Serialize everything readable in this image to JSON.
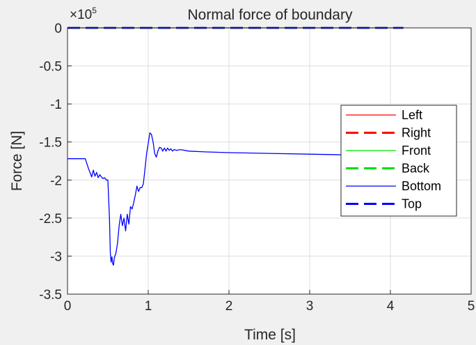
{
  "chart_data": {
    "type": "line",
    "title": "Normal force of boundary",
    "xlabel": "Time [s]",
    "ylabel": "Force [N]",
    "exponent_base": "×10",
    "exponent_power": "5",
    "xlim": [
      0,
      5
    ],
    "ylim": [
      -3.5,
      0
    ],
    "scale_factor": 100000,
    "x_ticks": [
      0,
      1,
      2,
      3,
      4,
      5
    ],
    "x_tick_labels": [
      "0",
      "1",
      "2",
      "3",
      "4",
      "5"
    ],
    "y_ticks": [
      0,
      -0.5,
      -1,
      -1.5,
      -2,
      -2.5,
      -3,
      -3.5
    ],
    "y_tick_labels": [
      "0",
      "-0.5",
      "-1",
      "-1.5",
      "-2",
      "-2.5",
      "-3",
      "-3.5"
    ],
    "grid": true,
    "legend_position": "right",
    "series": [
      {
        "name": "Left",
        "color": "#ff0000",
        "style": "solid",
        "x": [
          0,
          4.16
        ],
        "y": [
          0,
          0
        ]
      },
      {
        "name": "Right",
        "color": "#ff0000",
        "style": "dashed",
        "x": [
          0,
          4.16
        ],
        "y": [
          0,
          0
        ]
      },
      {
        "name": "Front",
        "color": "#00dd00",
        "style": "solid",
        "x": [
          0,
          4.16
        ],
        "y": [
          0,
          0
        ]
      },
      {
        "name": "Back",
        "color": "#00dd00",
        "style": "dashed",
        "x": [
          0,
          4.16
        ],
        "y": [
          0,
          0
        ]
      },
      {
        "name": "Bottom",
        "color": "#0000ff",
        "style": "solid",
        "x": [
          0,
          0.22,
          0.26,
          0.3,
          0.32,
          0.34,
          0.36,
          0.38,
          0.4,
          0.42,
          0.44,
          0.46,
          0.48,
          0.5,
          0.52,
          0.53,
          0.54,
          0.55,
          0.56,
          0.57,
          0.58,
          0.6,
          0.62,
          0.64,
          0.66,
          0.68,
          0.7,
          0.72,
          0.74,
          0.76,
          0.78,
          0.8,
          0.82,
          0.84,
          0.86,
          0.88,
          0.9,
          0.92,
          0.94,
          0.96,
          0.98,
          1.0,
          1.02,
          1.04,
          1.06,
          1.08,
          1.1,
          1.12,
          1.14,
          1.16,
          1.18,
          1.2,
          1.22,
          1.24,
          1.26,
          1.28,
          1.3,
          1.32,
          1.35,
          1.4,
          1.5,
          1.7,
          2.0,
          2.5,
          3.0,
          3.5
        ],
        "y": [
          -1.72,
          -1.72,
          -1.85,
          -1.96,
          -1.87,
          -1.95,
          -1.9,
          -1.97,
          -1.93,
          -1.96,
          -1.98,
          -1.97,
          -2.0,
          -2.0,
          -2.5,
          -2.95,
          -3.08,
          -3.01,
          -3.1,
          -3.12,
          -3.02,
          -2.96,
          -2.83,
          -2.6,
          -2.45,
          -2.6,
          -2.5,
          -2.67,
          -2.45,
          -2.58,
          -2.35,
          -2.38,
          -2.3,
          -2.2,
          -2.08,
          -2.15,
          -2.1,
          -2.1,
          -2.05,
          -1.85,
          -1.65,
          -1.52,
          -1.38,
          -1.4,
          -1.5,
          -1.65,
          -1.7,
          -1.62,
          -1.57,
          -1.58,
          -1.62,
          -1.58,
          -1.62,
          -1.58,
          -1.61,
          -1.59,
          -1.62,
          -1.6,
          -1.61,
          -1.6,
          -1.62,
          -1.63,
          -1.64,
          -1.65,
          -1.66,
          -1.67
        ]
      },
      {
        "name": "Top",
        "color": "#0000ff",
        "style": "dashed",
        "x": [
          0,
          4.16
        ],
        "y": [
          0,
          0
        ]
      }
    ]
  }
}
